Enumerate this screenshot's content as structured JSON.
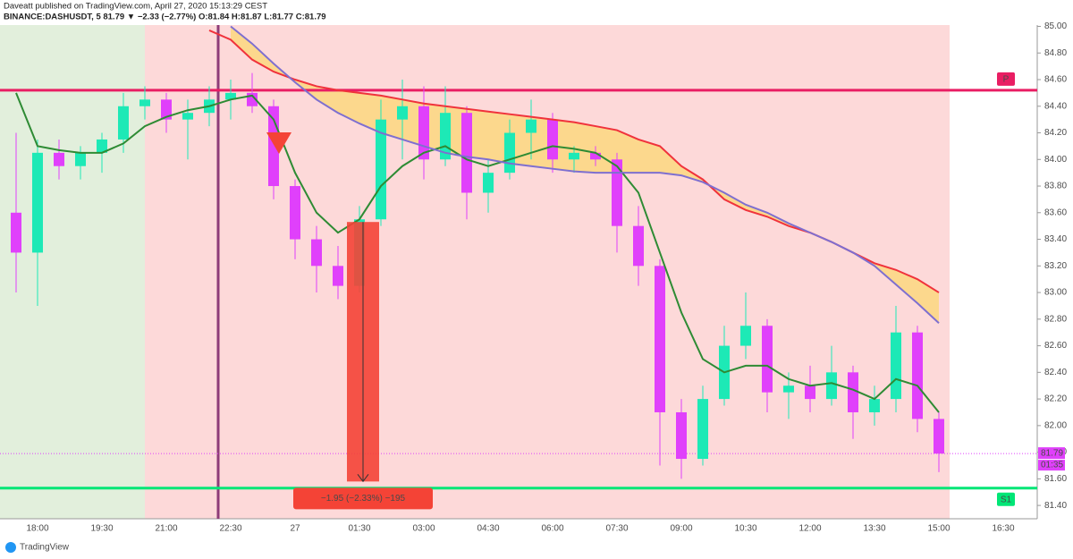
{
  "header": {
    "line1": "Daveatt published on TradingView.com, April 27, 2020 15:13:29 CEST",
    "line2": "BINANCE:DASHUSDT, 5  81.79 ▼ −2.33 (−2.77%) O:81.84 H:81.87 L:81.77 C:81.79"
  },
  "footer": "TradingView",
  "chart_data": {
    "type": "candlestick",
    "categories": [
      null,
      "18:00",
      null,
      null,
      "19:30",
      null,
      null,
      "21:00",
      null,
      null,
      "22:30",
      null,
      null,
      "27",
      null,
      null,
      "01:30",
      null,
      null,
      "03:00",
      null,
      null,
      "04:30",
      null,
      null,
      "06:00",
      null,
      null,
      "07:30",
      null,
      null,
      "09:00",
      null,
      null,
      "10:30",
      null,
      null,
      "12:00",
      null,
      null,
      "13:30",
      null,
      null,
      "15:00",
      null,
      null,
      "16:30",
      null
    ],
    "open": [
      83.6,
      83.3,
      84.05,
      83.95,
      84.05,
      84.15,
      84.4,
      84.45,
      84.3,
      84.35,
      84.45,
      84.5,
      84.4,
      83.8,
      83.4,
      83.2,
      83.05,
      83.55,
      84.3,
      84.4,
      84.0,
      84.35,
      83.75,
      83.9,
      84.2,
      84.3,
      84.0,
      84.05,
      84.0,
      83.5,
      83.2,
      82.1,
      81.75,
      82.2,
      82.6,
      82.75,
      82.25,
      82.3,
      82.2,
      82.4,
      82.1,
      82.2,
      82.7,
      82.05,
      null,
      null,
      null,
      null
    ],
    "high": [
      84.2,
      84.15,
      84.15,
      84.1,
      84.2,
      84.5,
      84.55,
      84.5,
      84.45,
      84.55,
      84.6,
      84.65,
      84.45,
      83.85,
      83.5,
      83.35,
      83.65,
      84.45,
      84.6,
      84.55,
      84.55,
      84.4,
      84.0,
      84.3,
      84.45,
      84.35,
      84.1,
      84.1,
      84.05,
      83.65,
      83.25,
      82.2,
      82.3,
      82.75,
      83.0,
      82.8,
      82.4,
      82.45,
      82.6,
      82.45,
      82.3,
      82.9,
      82.75,
      82.1,
      null,
      null,
      null,
      null
    ],
    "low": [
      83.0,
      82.9,
      83.85,
      83.85,
      83.9,
      84.05,
      84.3,
      84.2,
      84.0,
      84.25,
      84.3,
      84.35,
      83.7,
      83.25,
      83.0,
      82.95,
      83.0,
      83.5,
      84.0,
      83.85,
      83.95,
      83.55,
      83.6,
      83.85,
      84.0,
      83.9,
      83.9,
      83.95,
      83.3,
      83.05,
      81.7,
      81.6,
      81.7,
      82.15,
      82.5,
      82.1,
      82.05,
      82.1,
      82.15,
      81.9,
      82.0,
      82.1,
      81.95,
      81.65,
      null,
      null,
      null,
      null
    ],
    "close": [
      83.3,
      84.05,
      83.95,
      84.05,
      84.15,
      84.4,
      84.45,
      84.3,
      84.35,
      84.45,
      84.5,
      84.4,
      83.8,
      83.4,
      83.2,
      83.05,
      83.55,
      84.3,
      84.4,
      84.0,
      84.35,
      83.75,
      83.9,
      84.2,
      84.3,
      84.0,
      84.05,
      84.0,
      83.5,
      83.2,
      82.1,
      81.75,
      82.2,
      82.6,
      82.75,
      82.25,
      82.3,
      82.2,
      82.4,
      82.1,
      82.2,
      82.7,
      82.05,
      81.79,
      null,
      null,
      null,
      null
    ],
    "up_color": "#1de9b6",
    "down_color": "#e040fb",
    "overlays": [
      {
        "color": "#2e8b34",
        "values": [
          84.5,
          84.1,
          84.07,
          84.05,
          84.05,
          84.12,
          84.25,
          84.32,
          84.37,
          84.4,
          84.45,
          84.48,
          84.3,
          83.9,
          83.6,
          83.45,
          83.55,
          83.8,
          83.95,
          84.05,
          84.1,
          84.0,
          83.95,
          84.0,
          84.05,
          84.1,
          84.08,
          84.05,
          83.95,
          83.75,
          83.3,
          82.85,
          82.5,
          82.4,
          82.45,
          82.45,
          82.35,
          82.3,
          82.32,
          82.27,
          82.2,
          82.35,
          82.3,
          82.1,
          null,
          null,
          null,
          null
        ]
      },
      {
        "color": "#f0323c",
        "values": [
          null,
          null,
          null,
          null,
          null,
          null,
          null,
          null,
          null,
          84.97,
          84.9,
          84.75,
          84.66,
          84.6,
          84.55,
          84.52,
          84.5,
          84.48,
          84.45,
          84.42,
          84.4,
          84.38,
          84.36,
          84.34,
          84.32,
          84.3,
          84.28,
          84.25,
          84.22,
          84.15,
          84.1,
          83.95,
          83.85,
          83.7,
          83.62,
          83.57,
          83.5,
          83.45,
          83.38,
          83.3,
          83.22,
          83.17,
          83.1,
          83.0,
          null,
          null,
          null,
          null
        ]
      },
      {
        "color": "#7e6fd0",
        "values": [
          null,
          null,
          null,
          null,
          null,
          null,
          null,
          null,
          null,
          null,
          85.0,
          84.87,
          84.72,
          84.58,
          84.45,
          84.35,
          84.27,
          84.2,
          84.15,
          84.1,
          84.05,
          84.02,
          84.0,
          83.97,
          83.95,
          83.93,
          83.91,
          83.9,
          83.9,
          83.9,
          83.9,
          83.88,
          83.83,
          83.75,
          83.66,
          83.6,
          83.52,
          83.45,
          83.38,
          83.3,
          83.2,
          83.06,
          82.92,
          82.77,
          null,
          null,
          null,
          null
        ]
      }
    ],
    "levels": [
      {
        "label": "P",
        "value": 84.52,
        "color": "#e91e63"
      },
      {
        "label": "S1",
        "value": 81.53,
        "color": "#00e676"
      }
    ],
    "measure": {
      "label": "−1.95 (−2.33%) −195",
      "from": 83.53,
      "to": 81.58
    },
    "countdown": "01:35",
    "ylim": [
      81.3,
      85.01
    ],
    "yticks": [
      {
        "value": 85,
        "label": "85.00"
      },
      {
        "value": 84.8,
        "label": "84.80"
      },
      {
        "value": 84.6,
        "label": "84.60"
      },
      {
        "value": 84.4,
        "label": "84.40"
      },
      {
        "value": 84.2,
        "label": "84.20"
      },
      {
        "value": 84,
        "label": "84.00"
      },
      {
        "value": 83.8,
        "label": "83.80"
      },
      {
        "value": 83.6,
        "label": "83.60"
      },
      {
        "value": 83.4,
        "label": "83.40"
      },
      {
        "value": 83.2,
        "label": "83.20"
      },
      {
        "value": 83,
        "label": "83.00"
      },
      {
        "value": 82.8,
        "label": "82.80"
      },
      {
        "value": 82.6,
        "label": "82.60"
      },
      {
        "value": 82.4,
        "label": "82.40"
      },
      {
        "value": 82.2,
        "label": "82.20"
      },
      {
        "value": 82,
        "label": "82.00"
      },
      {
        "value": 81.8,
        "label": "81.80"
      },
      {
        "value": 81.6,
        "label": "81.60"
      },
      {
        "value": 81.4,
        "label": "81.40"
      }
    ]
  }
}
